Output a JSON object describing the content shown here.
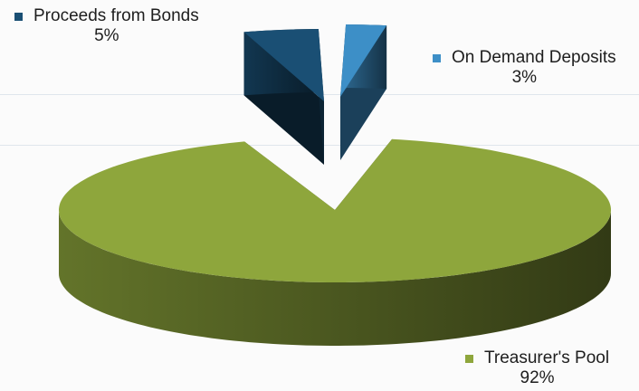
{
  "chart_data": {
    "type": "pie",
    "style": "3d-exploded",
    "title": "",
    "slices": [
      {
        "label": "Treasurer's Pool",
        "percent_label": "92%",
        "value": 92,
        "color": "#8ea63c"
      },
      {
        "label": "Proceeds from Bonds",
        "percent_label": "5%",
        "value": 5,
        "color": "#1a4f74"
      },
      {
        "label": "On Demand Deposits",
        "percent_label": "3%",
        "value": 3,
        "color": "#3d8fc7"
      }
    ]
  }
}
